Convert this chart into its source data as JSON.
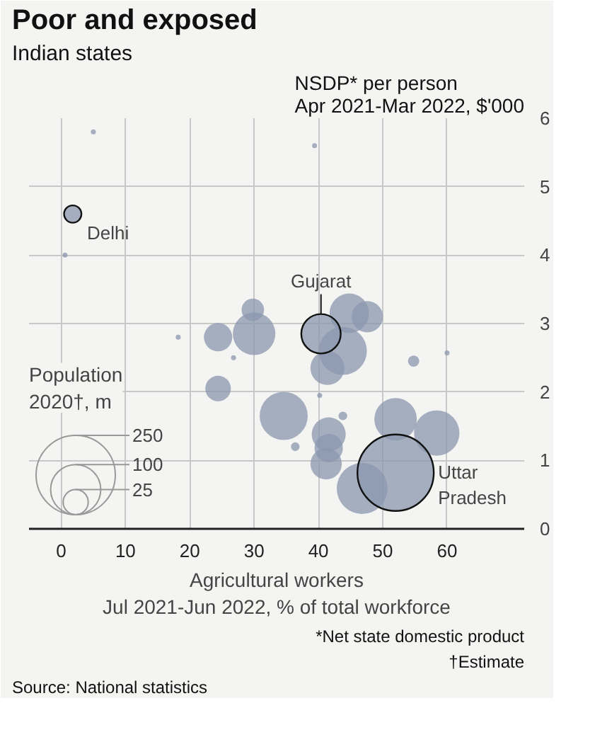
{
  "chart_data": {
    "type": "bubble",
    "title": "Poor and exposed",
    "subtitle": "Indian states",
    "ylabel": "NSDP* per person\nApr 2021-Mar 2022, $'000",
    "xlabel": "Agricultural workers\nJul 2021-Jun 2022, % of total workforce",
    "legend_title": "Population\n2020†, m",
    "x": [
      1.8,
      5,
      39.4,
      0.6,
      18.2,
      24.4,
      29.8,
      30,
      26.8,
      24.4,
      40.4,
      44.8,
      47.6,
      43.8,
      41.4,
      54.8,
      60,
      40.2,
      34.6,
      43.8,
      36.4,
      41.6,
      41.6,
      41.2,
      52,
      58.4,
      46.8,
      52
    ],
    "values": [
      4.6,
      5.8,
      5.6,
      4.0,
      2.8,
      2.8,
      3.2,
      2.85,
      2.5,
      2.05,
      2.85,
      3.15,
      3.1,
      2.6,
      2.35,
      2.45,
      2.57,
      1.95,
      1.65,
      1.65,
      1.2,
      1.38,
      1.18,
      0.95,
      1.6,
      1.4,
      0.59,
      0.82
    ],
    "sizes": [
      12,
      1,
      1,
      1,
      1,
      32,
      20,
      72,
      1,
      26,
      62,
      62,
      39,
      92,
      46,
      5,
      1,
      1,
      92,
      3,
      3,
      46,
      32,
      39,
      72,
      82,
      103,
      232
    ],
    "size_legend": [
      250,
      100,
      25
    ],
    "color": "#8a97ad",
    "xlim": [
      -5,
      72
    ],
    "ylim": [
      0,
      6
    ],
    "xticks": [
      0,
      10,
      20,
      30,
      40,
      50,
      60
    ],
    "yticks": [
      0,
      1,
      2,
      3,
      4,
      5,
      6
    ],
    "grid": true,
    "annotations": [
      {
        "text": "Delhi",
        "x": 1.8,
        "y": 4.6
      },
      {
        "text": "Gujarat",
        "x": 40.4,
        "y": 2.85
      },
      {
        "text": "Uttar\nPradesh",
        "x": 52,
        "y": 0.82
      },
      "*Net state domestic product",
      "†Estimate",
      "Source: National statistics"
    ]
  }
}
